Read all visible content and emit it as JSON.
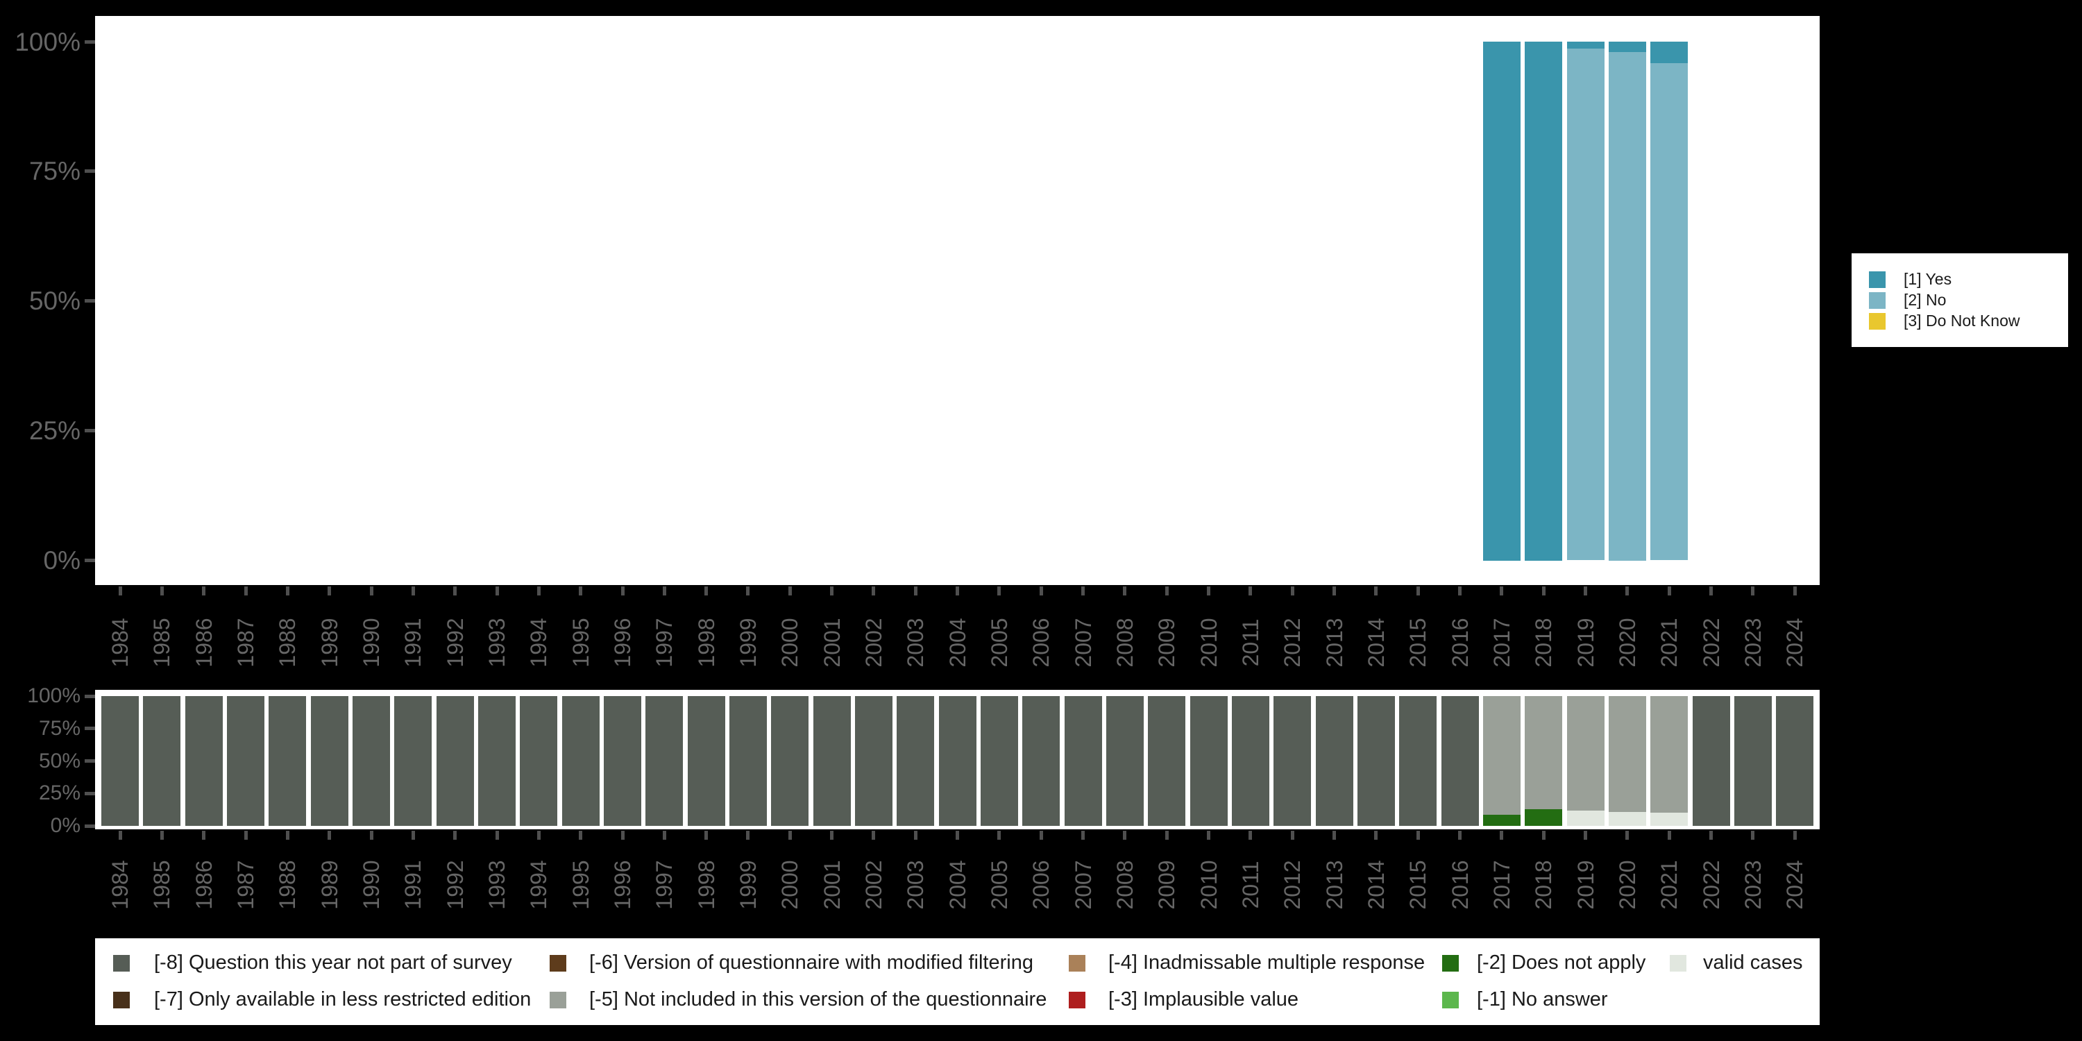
{
  "colors": {
    "background": "#000000",
    "panel": "#ffffff",
    "axis_label": "#666666",
    "axis_tick": "#4f4f4f",
    "legend_text": "#1a1a1a"
  },
  "y_axis_tick_labels": [
    "100%",
    "75%",
    "50%",
    "25%",
    "0%"
  ],
  "years": [
    "1984",
    "1985",
    "1986",
    "1987",
    "1988",
    "1989",
    "1990",
    "1991",
    "1992",
    "1993",
    "1994",
    "1995",
    "1996",
    "1997",
    "1998",
    "1999",
    "2000",
    "2001",
    "2002",
    "2003",
    "2004",
    "2005",
    "2006",
    "2007",
    "2008",
    "2009",
    "2010",
    "2011",
    "2012",
    "2013",
    "2014",
    "2015",
    "2016",
    "2017",
    "2018",
    "2019",
    "2020",
    "2021",
    "2022",
    "2023",
    "2024"
  ],
  "chart_data": [
    {
      "id": "answers",
      "type": "bar",
      "stacked": true,
      "unit": "percent",
      "categories": [
        "1984",
        "1985",
        "1986",
        "1987",
        "1988",
        "1989",
        "1990",
        "1991",
        "1992",
        "1993",
        "1994",
        "1995",
        "1996",
        "1997",
        "1998",
        "1999",
        "2000",
        "2001",
        "2002",
        "2003",
        "2004",
        "2005",
        "2006",
        "2007",
        "2008",
        "2009",
        "2010",
        "2011",
        "2012",
        "2013",
        "2014",
        "2015",
        "2016",
        "2017",
        "2018",
        "2019",
        "2020",
        "2021",
        "2022",
        "2023",
        "2024"
      ],
      "ylim": [
        0,
        100
      ],
      "yticks": [
        "0%",
        "25%",
        "50%",
        "75%",
        "100%"
      ],
      "grid": false,
      "legend_position": "right",
      "series": [
        {
          "label": "[1] Yes",
          "color": "#3a95ac",
          "values_by_year": {
            "2017": 100,
            "2018": 100,
            "2019": 1.3,
            "2020": 2.0,
            "2021": 4.2
          }
        },
        {
          "label": "[2] No",
          "color": "#7cb5c5",
          "values_by_year": {
            "2019": 98.7,
            "2020": 98.0,
            "2021": 95.8
          }
        },
        {
          "label": "[3] Do Not Know",
          "color": "#e9c72e",
          "values_by_year": {}
        }
      ]
    },
    {
      "id": "missings",
      "type": "bar",
      "stacked": true,
      "unit": "percent",
      "categories": [
        "1984",
        "1985",
        "1986",
        "1987",
        "1988",
        "1989",
        "1990",
        "1991",
        "1992",
        "1993",
        "1994",
        "1995",
        "1996",
        "1997",
        "1998",
        "1999",
        "2000",
        "2001",
        "2002",
        "2003",
        "2004",
        "2005",
        "2006",
        "2007",
        "2008",
        "2009",
        "2010",
        "2011",
        "2012",
        "2013",
        "2014",
        "2015",
        "2016",
        "2017",
        "2018",
        "2019",
        "2020",
        "2021",
        "2022",
        "2023",
        "2024"
      ],
      "ylim": [
        0,
        100
      ],
      "yticks": [
        "0%",
        "25%",
        "50%",
        "75%",
        "100%"
      ],
      "grid": false,
      "legend_position": "bottom",
      "series": [
        {
          "label": "[-8] Question this year not part of survey",
          "color": "#565d56",
          "values_by_year": {
            "1984": 100,
            "1985": 100,
            "1986": 100,
            "1987": 100,
            "1988": 100,
            "1989": 100,
            "1990": 100,
            "1991": 100,
            "1992": 100,
            "1993": 100,
            "1994": 100,
            "1995": 100,
            "1996": 100,
            "1997": 100,
            "1998": 100,
            "1999": 100,
            "2000": 100,
            "2001": 100,
            "2002": 100,
            "2003": 100,
            "2004": 100,
            "2005": 100,
            "2006": 100,
            "2007": 100,
            "2008": 100,
            "2009": 100,
            "2010": 100,
            "2011": 100,
            "2012": 100,
            "2013": 100,
            "2014": 100,
            "2015": 100,
            "2016": 100,
            "2022": 100,
            "2023": 100,
            "2024": 100
          }
        },
        {
          "label": "[-7] Only available in less restricted edition",
          "color": "#48301a",
          "values_by_year": {}
        },
        {
          "label": "[-6] Version of questionnaire with modified filtering",
          "color": "#5e3c1c",
          "values_by_year": {}
        },
        {
          "label": "[-5] Not included in this version of the questionnaire",
          "color": "#9aa098",
          "values_by_year": {
            "2017": 91.6,
            "2018": 87.2,
            "2019": 88.0,
            "2020": 89.3,
            "2021": 89.8
          }
        },
        {
          "label": "[-4] Inadmissable multiple response",
          "color": "#aa8159",
          "values_by_year": {}
        },
        {
          "label": "[-3] Implausible value",
          "color": "#ae1e1e",
          "values_by_year": {}
        },
        {
          "label": "[-2] Does not apply",
          "color": "#236d12",
          "values_by_year": {
            "2017": 8.4,
            "2018": 12.8
          }
        },
        {
          "label": "[-1] No answer",
          "color": "#5cb74d",
          "values_by_year": {}
        },
        {
          "label": "valid cases",
          "color": "#e1e7df",
          "values_by_year": {
            "2019": 12.0,
            "2020": 10.7,
            "2021": 10.2
          }
        }
      ]
    }
  ]
}
